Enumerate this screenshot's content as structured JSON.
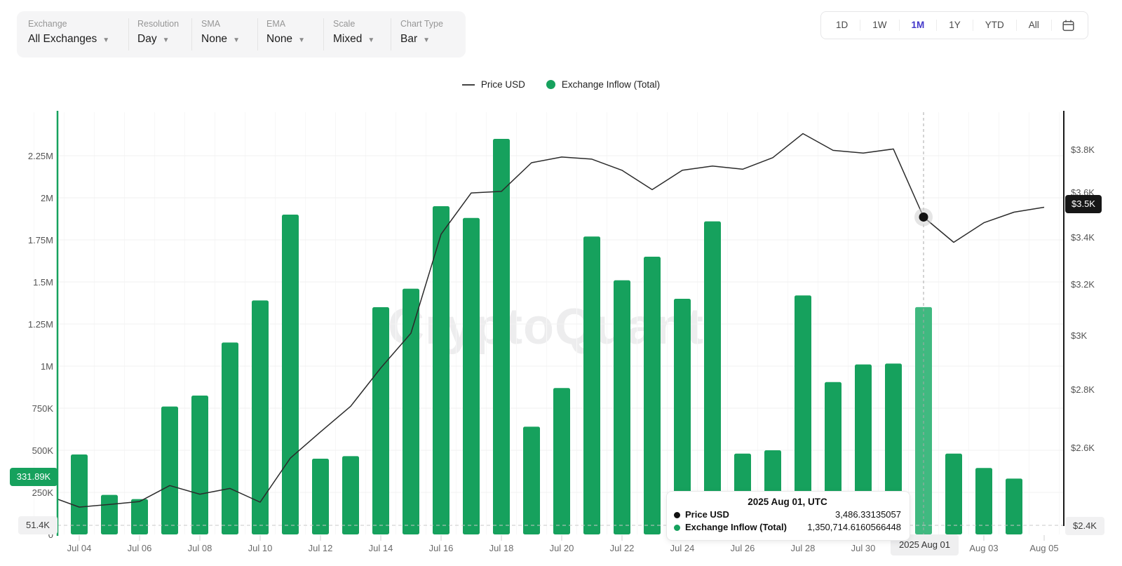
{
  "toolbar": {
    "groups": [
      {
        "label": "Exchange",
        "value": "All Exchanges"
      },
      {
        "label": "Resolution",
        "value": "Day"
      },
      {
        "label": "SMA",
        "value": "None"
      },
      {
        "label": "EMA",
        "value": "None"
      },
      {
        "label": "Scale",
        "value": "Mixed"
      },
      {
        "label": "Chart Type",
        "value": "Bar"
      }
    ]
  },
  "range_selector": {
    "options": [
      "1D",
      "1W",
      "1M",
      "1Y",
      "YTD",
      "All"
    ],
    "active": "1M",
    "active_color": "#4338ca",
    "calendar_icon": "calendar-icon"
  },
  "legend": {
    "items": [
      {
        "label": "Price USD",
        "marker": "line",
        "color": "#444444"
      },
      {
        "label": "Exchange Inflow (Total)",
        "marker": "dot",
        "color": "#16a15d"
      }
    ]
  },
  "watermark": "CryptoQuant",
  "badges": {
    "inflow_latest": "331.89K",
    "inflow_min": "51.4K",
    "price_current": "$3.5K",
    "price_min": "$2.4K"
  },
  "crosshair": {
    "x_label": "2025 Aug 01",
    "hover_date": "Aug 01"
  },
  "tooltip": {
    "title": "2025 Aug 01, UTC",
    "rows": [
      {
        "label": "Price USD",
        "value": "3,486.33135057",
        "dot_color": "#111111"
      },
      {
        "label": "Exchange Inflow (Total)",
        "value": "1,350,714.6160566448",
        "dot_color": "#16a15d"
      }
    ]
  },
  "colors": {
    "bar": "#16a15d",
    "bar_highlight": "#40b980",
    "price_line": "#2b2b2b",
    "grid": "#f2f2f2",
    "grid_vertical": "#f7f7f7",
    "dashed_min": "#c8c8c8",
    "crosshair": "#a8a8a8",
    "left_axis_line": "#16a15d",
    "right_axis_line": "#1a1a1a",
    "tick": "#cfcfcf"
  },
  "chart_data": {
    "type": "bar",
    "title": "",
    "xlabel": "",
    "ylabel_left": "Exchange Inflow (Total)",
    "ylabel_right": "Price USD",
    "grid": true,
    "legend_position": "top",
    "x": [
      "Jul 03",
      "Jul 04",
      "Jul 05",
      "Jul 06",
      "Jul 07",
      "Jul 08",
      "Jul 09",
      "Jul 10",
      "Jul 11",
      "Jul 12",
      "Jul 13",
      "Jul 14",
      "Jul 15",
      "Jul 16",
      "Jul 17",
      "Jul 18",
      "Jul 19",
      "Jul 20",
      "Jul 21",
      "Jul 22",
      "Jul 23",
      "Jul 24",
      "Jul 25",
      "Jul 26",
      "Jul 27",
      "Jul 28",
      "Jul 29",
      "Jul 30",
      "Jul 31",
      "Aug 01",
      "Aug 02",
      "Aug 03",
      "Aug 04",
      "Aug 05"
    ],
    "series": [
      {
        "name": "Exchange Inflow (Total)",
        "kind": "bar",
        "axis": "left",
        "values": [
          165000,
          475000,
          235000,
          210000,
          760000,
          825000,
          1140000,
          1390000,
          1900000,
          450000,
          465000,
          1350000,
          1460000,
          1950000,
          1880000,
          2350000,
          640000,
          870000,
          1770000,
          1510000,
          1650000,
          1400000,
          1860000,
          480000,
          500000,
          1420000,
          905000,
          1010000,
          1015000,
          1350714.6160566448,
          480000,
          395000,
          331890,
          null
        ]
      },
      {
        "name": "Price USD",
        "kind": "line",
        "axis": "right",
        "values": [
          2444,
          2410,
          2418,
          2427,
          2477,
          2450,
          2468,
          2425,
          2565,
          2652,
          2740,
          2877,
          3007,
          3411,
          3595,
          3602,
          3736,
          3763,
          3753,
          3700,
          3610,
          3700,
          3720,
          3705,
          3760,
          3877,
          3795,
          3782,
          3802,
          3486.33135057,
          3376,
          3461,
          3508,
          3530
        ]
      }
    ],
    "highlight_index": 29,
    "marker_index": 29,
    "left_axis": {
      "ticks": [
        {
          "label": "2.25M",
          "value": 2250000
        },
        {
          "label": "2M",
          "value": 2000000
        },
        {
          "label": "1.75M",
          "value": 1750000
        },
        {
          "label": "1.5M",
          "value": 1500000
        },
        {
          "label": "1.25M",
          "value": 1250000
        },
        {
          "label": "1M",
          "value": 1000000
        },
        {
          "label": "750K",
          "value": 750000
        },
        {
          "label": "500K",
          "value": 500000
        },
        {
          "label": "250K",
          "value": 250000
        },
        {
          "label": "0",
          "value": 0
        }
      ],
      "min_line": {
        "label": "51.4K",
        "value": 51400
      },
      "latest_badge": {
        "label": "331.89K",
        "value": 331890
      }
    },
    "right_axis": {
      "ticks": [
        {
          "label": "$3.8K",
          "value": 3800
        },
        {
          "label": "$3.6K",
          "value": 3600
        },
        {
          "label": "$3.4K",
          "value": 3400
        },
        {
          "label": "$3.2K",
          "value": 3200
        },
        {
          "label": "$3K",
          "value": 3000
        },
        {
          "label": "$2.8K",
          "value": 2800
        },
        {
          "label": "$2.6K",
          "value": 2600
        }
      ],
      "min_line": {
        "label": "$2.4K",
        "value": 2400
      },
      "current_badge": {
        "label": "$3.5K",
        "value": 3486.33135057
      }
    },
    "x_tick_labels": [
      "Jul 04",
      "Jul 06",
      "Jul 08",
      "Jul 10",
      "Jul 12",
      "Jul 14",
      "Jul 16",
      "Jul 18",
      "Jul 20",
      "Jul 22",
      "Jul 24",
      "Jul 26",
      "Jul 28",
      "Jul 30",
      "Aug 01",
      "Aug 03",
      "Aug 05"
    ]
  }
}
